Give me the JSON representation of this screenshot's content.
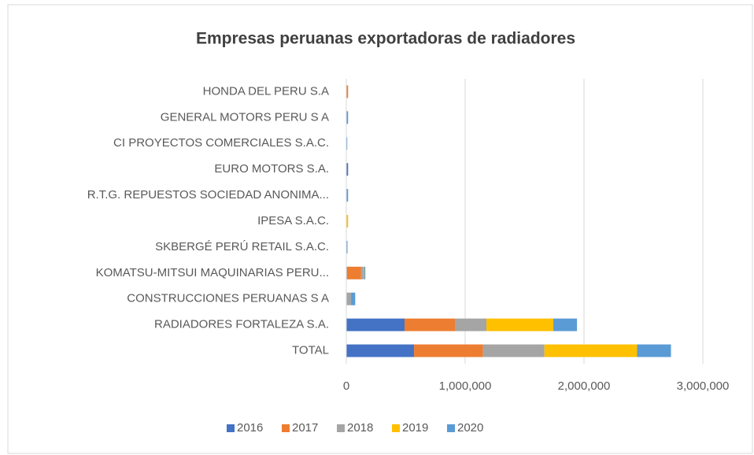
{
  "chart_data": {
    "type": "stacked-barh",
    "title": "Empresas peruanas exportadoras de radiadores",
    "categories": [
      "HONDA DEL PERU S.A",
      "GENERAL MOTORS PERU S A",
      "CI PROYECTOS COMERCIALES S.A.C.",
      "EURO MOTORS S.A.",
      "R.T.G. REPUESTOS SOCIEDAD ANONIMA...",
      "IPESA S.A.C.",
      "SKBERGÉ PERÚ RETAIL S.A.C.",
      "KOMATSU-MITSUI MAQUINARIAS PERU...",
      "CONSTRUCCIONES PERUANAS S A",
      "RADIADORES FORTALEZA S.A.",
      "TOTAL"
    ],
    "series": [
      {
        "name": "2016",
        "color": "#4472c4",
        "values": [
          0,
          0,
          0,
          15000,
          0,
          0,
          0,
          5000,
          5000,
          490000,
          570000
        ]
      },
      {
        "name": "2017",
        "color": "#ed7d31",
        "values": [
          15000,
          0,
          0,
          0,
          0,
          0,
          0,
          120000,
          0,
          424000,
          580000
        ]
      },
      {
        "name": "2018",
        "color": "#a5a5a5",
        "values": [
          0,
          0,
          0,
          0,
          0,
          0,
          0,
          20000,
          35000,
          265000,
          517000
        ]
      },
      {
        "name": "2019",
        "color": "#ffc000",
        "values": [
          0,
          0,
          0,
          0,
          0,
          15000,
          0,
          5000,
          0,
          563000,
          780000
        ]
      },
      {
        "name": "2020",
        "color": "#5b9bd5",
        "values": [
          0,
          15000,
          8000,
          0,
          15000,
          0,
          10000,
          10000,
          35000,
          199000,
          285000
        ]
      }
    ],
    "xlim": [
      0,
      3000000
    ],
    "xticks": [
      0,
      {
        "value": 1000000,
        "label": "1,000,000"
      },
      {
        "value": 2000000,
        "label": "2,000,000"
      },
      {
        "value": 3000000,
        "label": "3,000,000"
      }
    ],
    "grid": true,
    "legend": "bottom"
  }
}
